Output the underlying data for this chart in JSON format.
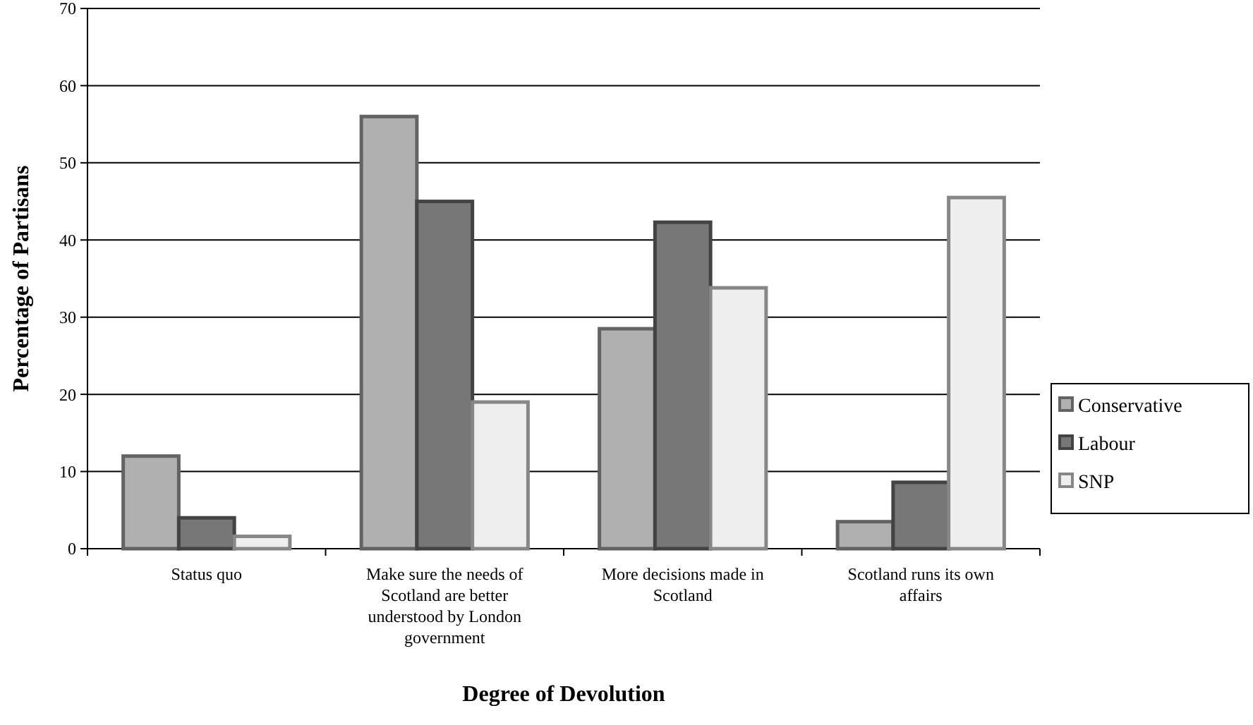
{
  "chart_data": {
    "type": "bar",
    "xlabel": "Degree of Devolution",
    "ylabel": "Percentage of Partisans",
    "categories": [
      "Status quo",
      "Make sure the needs of Scotland are better understood by London government",
      "More decisions made in Scotland",
      "Scotland runs its own affairs"
    ],
    "series": [
      {
        "name": "Conservative",
        "color": "#b0b0b0",
        "values": [
          12,
          56,
          28.5,
          3.5
        ]
      },
      {
        "name": "Labour",
        "color": "#777777",
        "values": [
          4,
          45,
          42.3,
          8.6
        ]
      },
      {
        "name": "SNP",
        "color": "#eeeeee",
        "values": [
          1.6,
          19,
          33.8,
          45.5
        ]
      }
    ],
    "ylim": [
      0,
      70
    ],
    "yticks": [
      0,
      10,
      20,
      30,
      40,
      50,
      60,
      70
    ],
    "grid": "y",
    "legend": "right"
  }
}
